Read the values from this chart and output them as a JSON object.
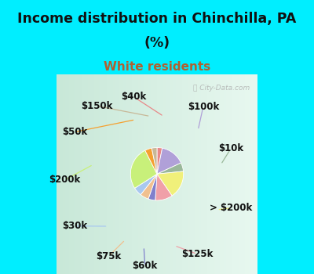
{
  "title_line1": "Income distribution in Chinchilla, PA",
  "title_line2": "(%)",
  "subtitle": "White residents",
  "title_color": "#111111",
  "subtitle_color": "#b06030",
  "bg_top": "#00eeff",
  "bg_chart_top": "#d0ede0",
  "bg_chart_bottom": "#e8f8f0",
  "watermark": "City-Data.com",
  "labels_ordered": [
    "$40k",
    "$100k",
    "$10k",
    "> $200k",
    "$125k",
    "$60k",
    "$75k",
    "$30k",
    "$200k",
    "$50k",
    "$150k"
  ],
  "values_ordered": [
    3,
    14,
    5,
    16,
    10,
    4,
    5,
    5,
    25,
    4,
    3
  ],
  "colors_ordered": [
    "#e88888",
    "#b0a0d8",
    "#9ab89a",
    "#f0f07a",
    "#f0a0a8",
    "#8080cc",
    "#f0c090",
    "#a8c8f0",
    "#c8f07a",
    "#f5a030",
    "#c8b898"
  ],
  "label_fontsize": 8.5,
  "title_fontsize": 12.5,
  "subtitle_fontsize": 11
}
